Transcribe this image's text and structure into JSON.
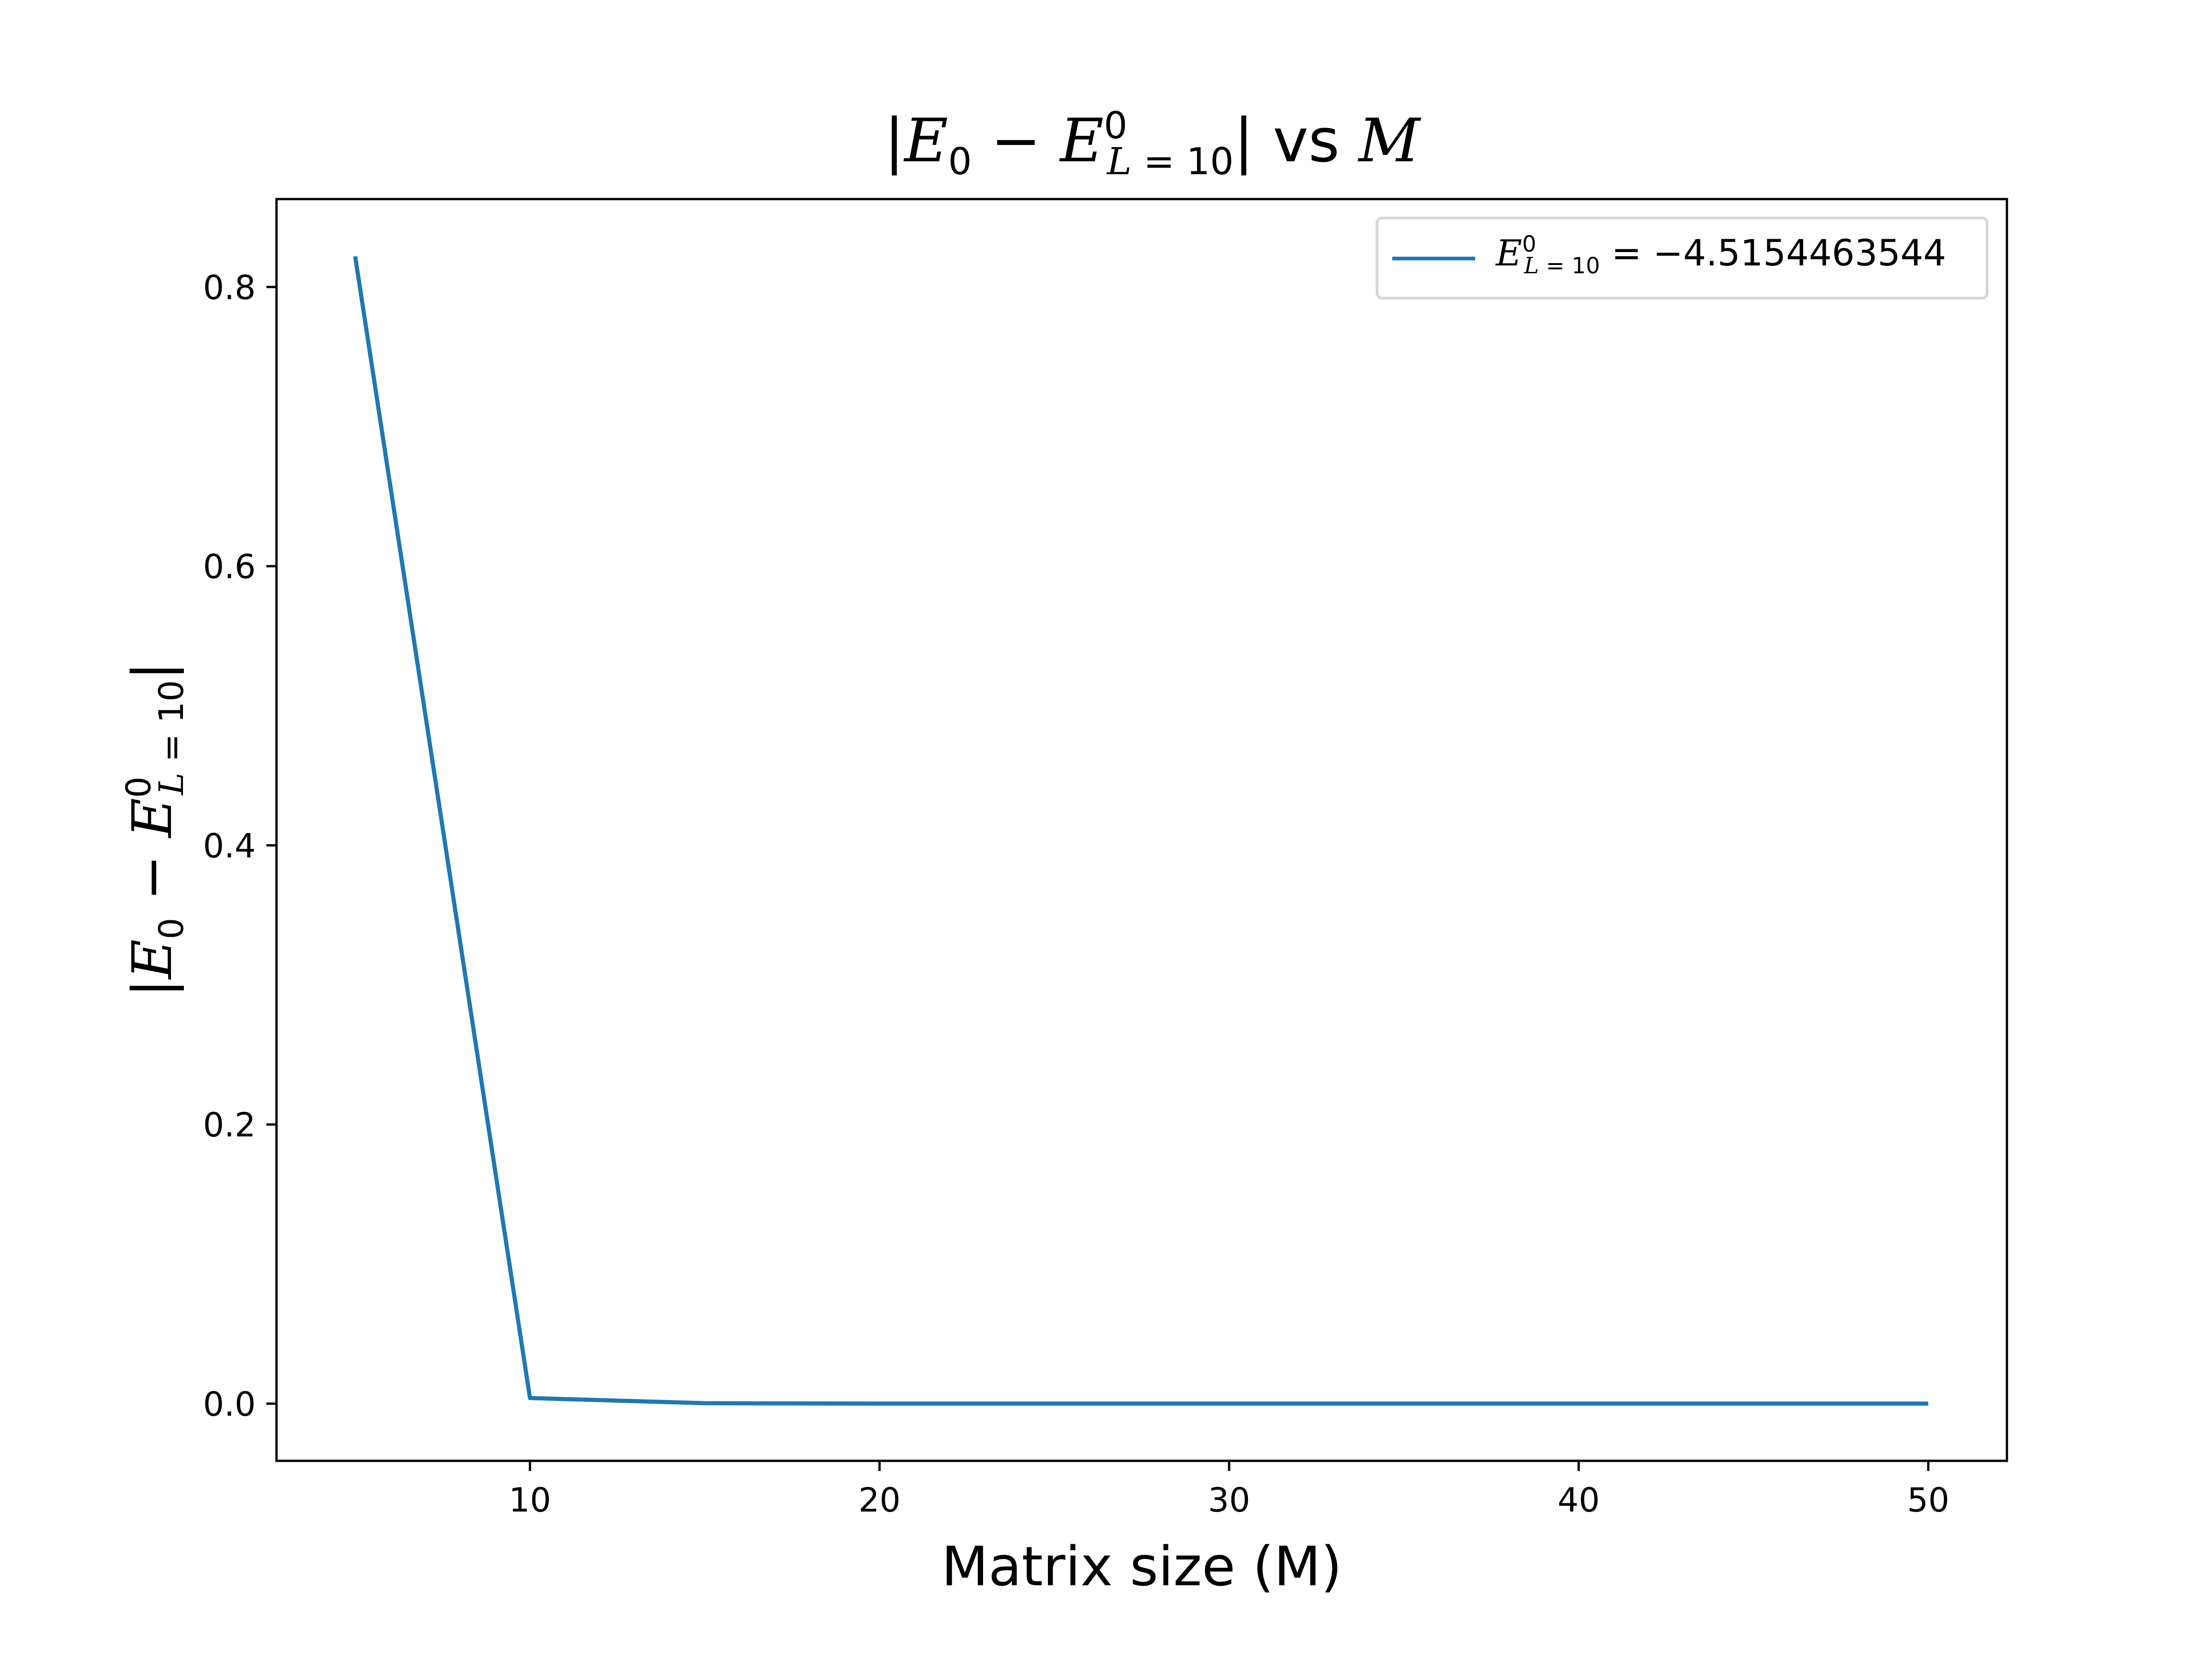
{
  "chart_data": {
    "type": "line",
    "title": "|E_0 - E^0_{L=10}| vs M",
    "title_parts": {
      "open": "|",
      "e": "E",
      "sub0": "0",
      "minus": "−",
      "sup": "0",
      "subL": "L",
      "eq": " = ",
      "ten": "10",
      "close": "|",
      "vs": " vs ",
      "m": "M"
    },
    "xlabel": "Matrix size (M)",
    "ylabel": "|E_0 - E^0_{L=10}|",
    "x": [
      5,
      10,
      15,
      20,
      25,
      30,
      35,
      40,
      45,
      50
    ],
    "series": [
      {
        "name": "E^0_{L=10} = -4.5154463544",
        "values": [
          0.822,
          0.004,
          0.0003,
          2e-05,
          2e-06,
          2e-07,
          2e-08,
          2e-09,
          2e-10,
          2e-11
        ]
      }
    ],
    "legend": {
      "placement": "top-right",
      "value": "−4.5154463544"
    },
    "xlim": [
      2.75,
      52.25
    ],
    "ylim": [
      -0.041,
      0.863
    ],
    "xticks": [
      10,
      20,
      30,
      40,
      50
    ],
    "yticks": [
      0.0,
      0.2,
      0.4,
      0.6,
      0.8
    ],
    "xtick_labels": [
      "10",
      "20",
      "30",
      "40",
      "50"
    ],
    "ytick_labels": [
      "0.0",
      "0.2",
      "0.4",
      "0.6",
      "0.8"
    ],
    "grid": false,
    "line_color": "#1f77b4"
  }
}
